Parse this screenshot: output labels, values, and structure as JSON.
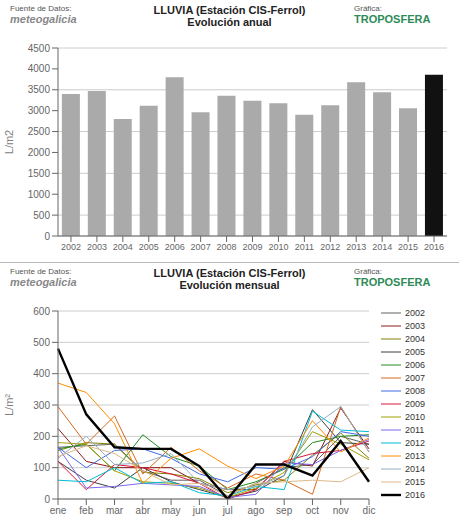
{
  "chart_data": [
    {
      "type": "bar",
      "title": "LLUVIA (Estación CIS-Ferrol)",
      "subtitle": "Evolución anual",
      "annotations": [
        "Fuente de Datos:",
        "Gráfica:",
        "meteogalicia",
        "TROPOSFERA"
      ],
      "categories": [
        "2002",
        "2003",
        "2004",
        "2005",
        "2006",
        "2007",
        "2008",
        "2009",
        "2010",
        "2011",
        "2012",
        "2013",
        "2014",
        "2015",
        "2016"
      ],
      "values": [
        3400,
        3470,
        2800,
        3120,
        3800,
        2960,
        3360,
        3240,
        3180,
        2900,
        3130,
        3680,
        3440,
        3060,
        3860
      ],
      "colors": [
        "#aaaaaa",
        "#aaaaaa",
        "#aaaaaa",
        "#aaaaaa",
        "#aaaaaa",
        "#aaaaaa",
        "#aaaaaa",
        "#aaaaaa",
        "#aaaaaa",
        "#aaaaaa",
        "#aaaaaa",
        "#aaaaaa",
        "#aaaaaa",
        "#aaaaaa",
        "#111111"
      ],
      "y_label": "L/m2",
      "ylim": [
        0,
        4500
      ],
      "yticks": [
        0,
        500,
        1000,
        1500,
        2000,
        2500,
        3000,
        3500,
        4000,
        4500
      ],
      "grid": true
    },
    {
      "type": "line",
      "title": "LLUVIA (Estación CIS-Ferrol)",
      "subtitle": "Evolución mensual",
      "annotations": [
        "Fuente de Datos:",
        "Gráfica:",
        "meteogalicia",
        "TROPOSFERA"
      ],
      "categories": [
        "ene",
        "feb",
        "mar",
        "abr",
        "may",
        "jun",
        "jul",
        "ago",
        "sep",
        "oct",
        "nov",
        "dic"
      ],
      "series": [
        {
          "name": "2002",
          "color": "#606060",
          "values": [
            165,
            170,
            175,
            90,
            60,
            60,
            10,
            50,
            100,
            110,
            200,
            175
          ]
        },
        {
          "name": "2003",
          "color": "#8b1a1a",
          "values": [
            225,
            120,
            100,
            100,
            100,
            50,
            30,
            30,
            120,
            105,
            290,
            160
          ]
        },
        {
          "name": "2004",
          "color": "#808000",
          "values": [
            155,
            180,
            175,
            85,
            80,
            65,
            20,
            45,
            60,
            140,
            210,
            130
          ]
        },
        {
          "name": "2005",
          "color": "#404040",
          "values": [
            120,
            60,
            35,
            100,
            55,
            30,
            5,
            25,
            75,
            285,
            180,
            175
          ]
        },
        {
          "name": "2006",
          "color": "#228b22",
          "values": [
            160,
            175,
            90,
            205,
            135,
            105,
            30,
            55,
            95,
            180,
            200,
            205
          ]
        },
        {
          "name": "2007",
          "color": "#d2691e",
          "values": [
            295,
            175,
            265,
            80,
            165,
            90,
            35,
            80,
            60,
            15,
            295,
            150
          ]
        },
        {
          "name": "2008",
          "color": "#4169e1",
          "values": [
            165,
            100,
            155,
            160,
            130,
            80,
            55,
            100,
            95,
            135,
            215,
            200
          ]
        },
        {
          "name": "2009",
          "color": "#dc143c",
          "values": [
            120,
            30,
            110,
            100,
            80,
            50,
            0,
            30,
            120,
            145,
            155,
            185
          ]
        },
        {
          "name": "2010",
          "color": "#a0a000",
          "values": [
            180,
            175,
            90,
            55,
            50,
            35,
            5,
            35,
            85,
            215,
            175,
            125
          ]
        },
        {
          "name": "2011",
          "color": "#7b68ee",
          "values": [
            165,
            35,
            40,
            50,
            45,
            40,
            5,
            15,
            115,
            110,
            155,
            190
          ]
        },
        {
          "name": "2012",
          "color": "#00bcd4",
          "values": [
            60,
            55,
            100,
            50,
            55,
            20,
            10,
            40,
            30,
            280,
            220,
            215
          ]
        },
        {
          "name": "2013",
          "color": "#ff8c00",
          "values": [
            370,
            340,
            240,
            50,
            130,
            160,
            105,
            65,
            105,
            250,
            150,
            195
          ]
        },
        {
          "name": "2014",
          "color": "#90afc5",
          "values": [
            130,
            200,
            110,
            115,
            145,
            50,
            30,
            40,
            75,
            230,
            295,
            150
          ]
        },
        {
          "name": "2015",
          "color": "#deb887",
          "values": [
            135,
            170,
            145,
            90,
            45,
            50,
            10,
            50,
            55,
            60,
            55,
            100
          ]
        },
        {
          "name": "2016",
          "color": "#000000",
          "values": [
            480,
            270,
            165,
            160,
            160,
            105,
            0,
            110,
            110,
            75,
            185,
            55
          ]
        }
      ],
      "y_label": "L/m²",
      "ylim": [
        0,
        600
      ],
      "yticks": [
        0,
        100,
        200,
        300,
        400,
        500,
        600
      ],
      "grid": true,
      "legend": "right"
    }
  ]
}
